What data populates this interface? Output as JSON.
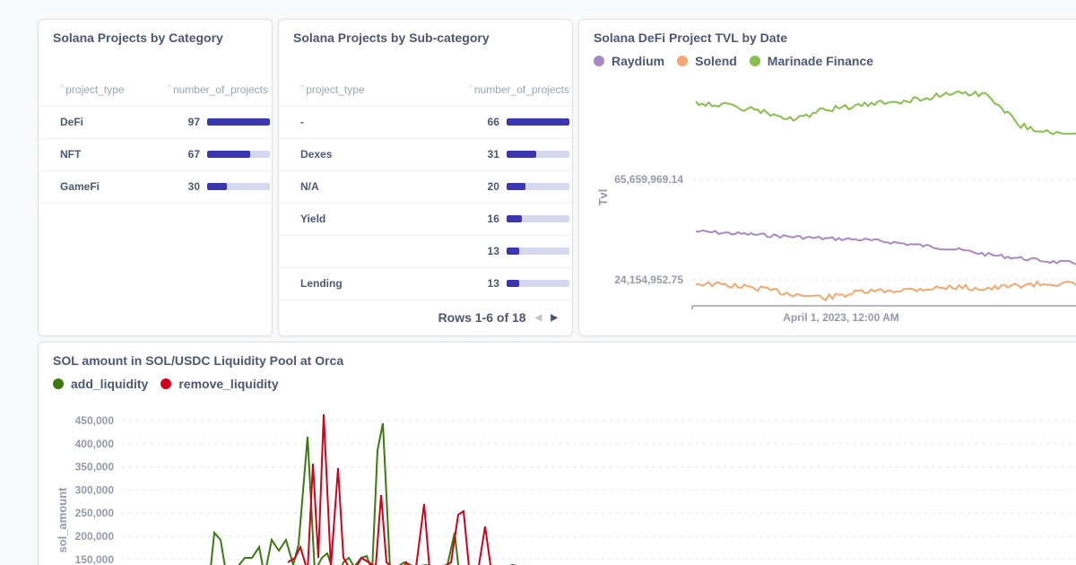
{
  "category_card": {
    "title": "Solana Projects by Category",
    "columns": [
      "project_type",
      "number_of_projects"
    ],
    "rows": [
      {
        "project_type": "DeFi",
        "number_of_projects": "97",
        "fraction": 1.0
      },
      {
        "project_type": "NFT",
        "number_of_projects": "67",
        "fraction": 0.69
      },
      {
        "project_type": "GameFi",
        "number_of_projects": "30",
        "fraction": 0.31
      }
    ]
  },
  "subcategory_card": {
    "title": "Solana Projects by Sub-category",
    "columns": [
      "project_type",
      "number_of_projects"
    ],
    "rows": [
      {
        "project_type": "-",
        "number_of_projects": "66",
        "fraction": 1.0
      },
      {
        "project_type": "Dexes",
        "number_of_projects": "31",
        "fraction": 0.47
      },
      {
        "project_type": "N/A",
        "number_of_projects": "20",
        "fraction": 0.3
      },
      {
        "project_type": "Yield",
        "number_of_projects": "16",
        "fraction": 0.24
      },
      {
        "project_type": "",
        "number_of_projects": "13",
        "fraction": 0.2
      },
      {
        "project_type": "Lending",
        "number_of_projects": "13",
        "fraction": 0.2
      }
    ],
    "pager": "Rows 1-6 of 18"
  },
  "chart_data": [
    {
      "type": "line",
      "title": "Solana DeFi Project TVL by Date",
      "ylabel": "Tvl",
      "xlabel": "",
      "y_tick_labels": [
        "65,659,969.14",
        "24,154,952.75"
      ],
      "x_tick_labels": [
        "April 1, 2023, 12:00 AM"
      ],
      "legend_position": "top-left",
      "grid": true,
      "series": [
        {
          "name": "Raydium",
          "color": "#a989c5"
        },
        {
          "name": "Solend",
          "color": "#f2a86f"
        },
        {
          "name": "Marinade Finance",
          "color": "#88bf4d"
        }
      ]
    },
    {
      "type": "line",
      "title": "SOL amount in SOL/USDC Liquidity Pool at Orca",
      "ylabel": "sol_amount",
      "xlabel": "",
      "y_tick_labels": [
        "450,000",
        "400,000",
        "350,000",
        "300,000",
        "250,000",
        "200,000",
        "150,000"
      ],
      "y_ticks": [
        450000,
        400000,
        350000,
        300000,
        250000,
        200000,
        150000
      ],
      "legend_position": "top-left",
      "grid": true,
      "series": [
        {
          "name": "add_liquidity",
          "color": "#3c7a0f"
        },
        {
          "name": "remove_liquidity",
          "color": "#d0021b"
        }
      ]
    }
  ]
}
